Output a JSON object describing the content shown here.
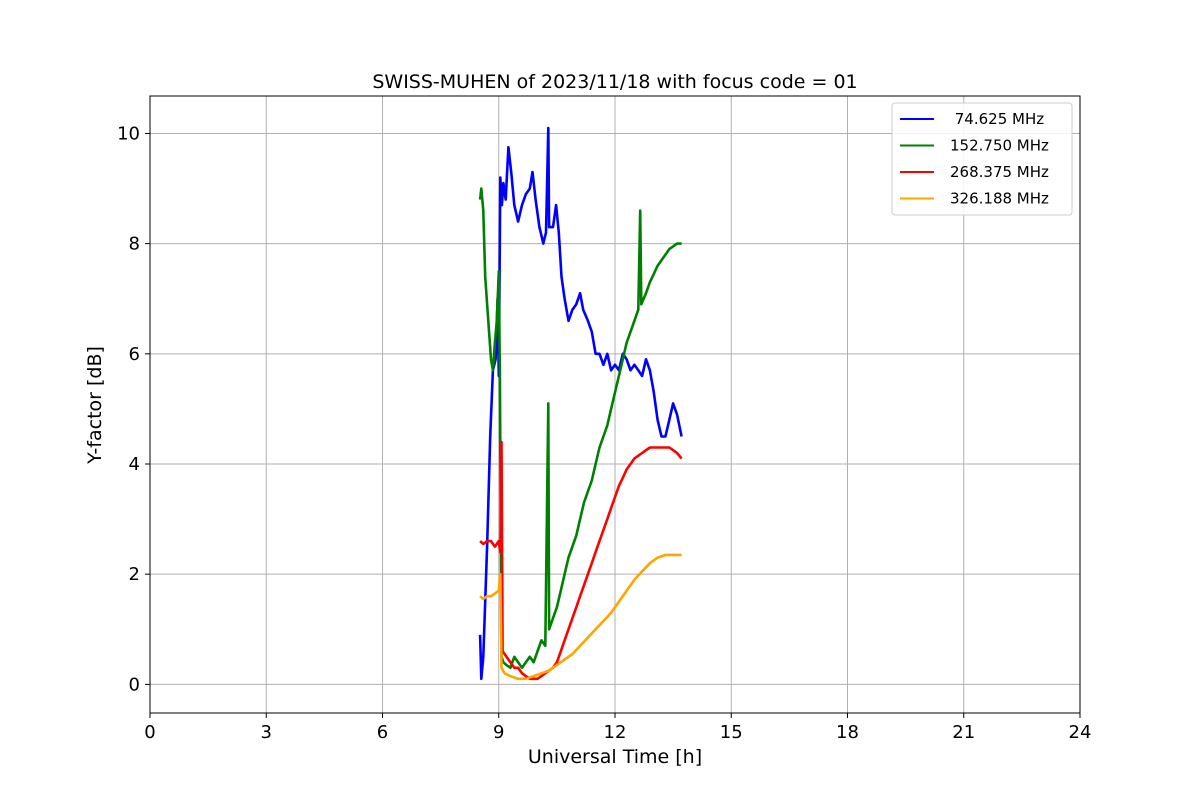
{
  "chart_data": {
    "type": "line",
    "title": "SWISS-MUHEN of 2023/11/18 with focus code = 01",
    "xlabel": "Universal Time [h]",
    "ylabel": "Y-factor [dB]",
    "xlim": [
      0,
      24
    ],
    "ylim": [
      -0.52,
      10.68
    ],
    "xticks": [
      0,
      3,
      6,
      9,
      12,
      15,
      18,
      21,
      24
    ],
    "yticks": [
      0,
      2,
      4,
      6,
      8,
      10
    ],
    "grid": true,
    "legend_position": "top-right",
    "series": [
      {
        "name": " 74.625 MHz",
        "color": "#0000ff",
        "points": [
          [
            8.52,
            0.9
          ],
          [
            8.55,
            0.1
          ],
          [
            8.6,
            0.5
          ],
          [
            8.7,
            2.5
          ],
          [
            8.78,
            4.5
          ],
          [
            8.85,
            5.7
          ],
          [
            8.92,
            5.9
          ],
          [
            8.97,
            7.0
          ],
          [
            9.0,
            5.6
          ],
          [
            9.04,
            9.2
          ],
          [
            9.08,
            8.7
          ],
          [
            9.12,
            9.1
          ],
          [
            9.18,
            8.8
          ],
          [
            9.25,
            9.75
          ],
          [
            9.32,
            9.3
          ],
          [
            9.4,
            8.7
          ],
          [
            9.5,
            8.4
          ],
          [
            9.6,
            8.7
          ],
          [
            9.7,
            8.9
          ],
          [
            9.8,
            9.0
          ],
          [
            9.87,
            9.3
          ],
          [
            9.95,
            8.8
          ],
          [
            10.05,
            8.3
          ],
          [
            10.15,
            8.0
          ],
          [
            10.22,
            8.2
          ],
          [
            10.28,
            10.1
          ],
          [
            10.3,
            8.3
          ],
          [
            10.4,
            8.3
          ],
          [
            10.48,
            8.7
          ],
          [
            10.55,
            8.2
          ],
          [
            10.62,
            7.4
          ],
          [
            10.7,
            7.0
          ],
          [
            10.8,
            6.6
          ],
          [
            10.9,
            6.8
          ],
          [
            11.0,
            6.9
          ],
          [
            11.1,
            7.1
          ],
          [
            11.18,
            6.8
          ],
          [
            11.3,
            6.6
          ],
          [
            11.4,
            6.4
          ],
          [
            11.5,
            6.0
          ],
          [
            11.6,
            6.0
          ],
          [
            11.7,
            5.8
          ],
          [
            11.8,
            6.0
          ],
          [
            11.9,
            5.7
          ],
          [
            12.0,
            5.8
          ],
          [
            12.1,
            5.7
          ],
          [
            12.2,
            6.0
          ],
          [
            12.3,
            5.9
          ],
          [
            12.4,
            5.7
          ],
          [
            12.5,
            5.8
          ],
          [
            12.6,
            5.7
          ],
          [
            12.7,
            5.6
          ],
          [
            12.8,
            5.9
          ],
          [
            12.9,
            5.7
          ],
          [
            13.0,
            5.3
          ],
          [
            13.1,
            4.8
          ],
          [
            13.2,
            4.5
          ],
          [
            13.3,
            4.5
          ],
          [
            13.4,
            4.8
          ],
          [
            13.5,
            5.1
          ],
          [
            13.6,
            4.9
          ],
          [
            13.72,
            4.5
          ]
        ]
      },
      {
        "name": "152.750 MHz",
        "color": "#008000",
        "points": [
          [
            8.52,
            8.8
          ],
          [
            8.55,
            9.0
          ],
          [
            8.6,
            8.6
          ],
          [
            8.65,
            7.4
          ],
          [
            8.72,
            6.7
          ],
          [
            8.8,
            5.9
          ],
          [
            8.85,
            5.7
          ],
          [
            8.9,
            6.2
          ],
          [
            8.95,
            6.6
          ],
          [
            9.0,
            7.5
          ],
          [
            9.03,
            5.6
          ],
          [
            9.07,
            0.5
          ],
          [
            9.12,
            0.4
          ],
          [
            9.2,
            0.35
          ],
          [
            9.3,
            0.3
          ],
          [
            9.4,
            0.5
          ],
          [
            9.5,
            0.4
          ],
          [
            9.6,
            0.3
          ],
          [
            9.7,
            0.4
          ],
          [
            9.8,
            0.5
          ],
          [
            9.9,
            0.4
          ],
          [
            10.0,
            0.6
          ],
          [
            10.1,
            0.8
          ],
          [
            10.2,
            0.7
          ],
          [
            10.28,
            5.1
          ],
          [
            10.3,
            1.0
          ],
          [
            10.4,
            1.2
          ],
          [
            10.5,
            1.4
          ],
          [
            10.6,
            1.7
          ],
          [
            10.7,
            2.0
          ],
          [
            10.8,
            2.3
          ],
          [
            10.9,
            2.5
          ],
          [
            11.0,
            2.7
          ],
          [
            11.1,
            3.0
          ],
          [
            11.2,
            3.3
          ],
          [
            11.3,
            3.5
          ],
          [
            11.4,
            3.7
          ],
          [
            11.5,
            4.0
          ],
          [
            11.6,
            4.3
          ],
          [
            11.7,
            4.5
          ],
          [
            11.8,
            4.7
          ],
          [
            11.9,
            5.0
          ],
          [
            12.0,
            5.3
          ],
          [
            12.1,
            5.6
          ],
          [
            12.2,
            5.9
          ],
          [
            12.3,
            6.2
          ],
          [
            12.4,
            6.4
          ],
          [
            12.5,
            6.6
          ],
          [
            12.6,
            6.8
          ],
          [
            12.65,
            8.6
          ],
          [
            12.68,
            6.9
          ],
          [
            12.8,
            7.1
          ],
          [
            12.9,
            7.3
          ],
          [
            13.0,
            7.45
          ],
          [
            13.1,
            7.6
          ],
          [
            13.2,
            7.7
          ],
          [
            13.3,
            7.8
          ],
          [
            13.4,
            7.9
          ],
          [
            13.5,
            7.95
          ],
          [
            13.6,
            8.0
          ],
          [
            13.72,
            8.0
          ]
        ]
      },
      {
        "name": "268.375 MHz",
        "color": "#ff0000",
        "points": [
          [
            8.52,
            2.6
          ],
          [
            8.6,
            2.55
          ],
          [
            8.7,
            2.6
          ],
          [
            8.8,
            2.6
          ],
          [
            8.9,
            2.5
          ],
          [
            9.0,
            2.6
          ],
          [
            9.04,
            2.4
          ],
          [
            9.07,
            4.4
          ],
          [
            9.1,
            0.6
          ],
          [
            9.2,
            0.5
          ],
          [
            9.3,
            0.4
          ],
          [
            9.4,
            0.3
          ],
          [
            9.5,
            0.3
          ],
          [
            9.6,
            0.2
          ],
          [
            9.7,
            0.15
          ],
          [
            9.8,
            0.1
          ],
          [
            9.9,
            0.1
          ],
          [
            10.0,
            0.1
          ],
          [
            10.1,
            0.15
          ],
          [
            10.2,
            0.2
          ],
          [
            10.3,
            0.25
          ],
          [
            10.4,
            0.3
          ],
          [
            10.5,
            0.4
          ],
          [
            10.6,
            0.6
          ],
          [
            10.7,
            0.8
          ],
          [
            10.8,
            1.0
          ],
          [
            10.9,
            1.2
          ],
          [
            11.0,
            1.4
          ],
          [
            11.1,
            1.6
          ],
          [
            11.2,
            1.8
          ],
          [
            11.3,
            2.0
          ],
          [
            11.4,
            2.2
          ],
          [
            11.5,
            2.4
          ],
          [
            11.6,
            2.6
          ],
          [
            11.7,
            2.8
          ],
          [
            11.8,
            3.0
          ],
          [
            11.9,
            3.2
          ],
          [
            12.0,
            3.4
          ],
          [
            12.1,
            3.6
          ],
          [
            12.2,
            3.75
          ],
          [
            12.3,
            3.9
          ],
          [
            12.4,
            4.0
          ],
          [
            12.5,
            4.1
          ],
          [
            12.6,
            4.15
          ],
          [
            12.7,
            4.2
          ],
          [
            12.8,
            4.25
          ],
          [
            12.9,
            4.3
          ],
          [
            13.0,
            4.3
          ],
          [
            13.1,
            4.3
          ],
          [
            13.2,
            4.3
          ],
          [
            13.3,
            4.3
          ],
          [
            13.4,
            4.3
          ],
          [
            13.5,
            4.25
          ],
          [
            13.6,
            4.2
          ],
          [
            13.72,
            4.1
          ]
        ]
      },
      {
        "name": "326.188 MHz",
        "color": "#ffa500",
        "points": [
          [
            8.52,
            1.6
          ],
          [
            8.6,
            1.55
          ],
          [
            8.7,
            1.6
          ],
          [
            8.8,
            1.6
          ],
          [
            8.9,
            1.65
          ],
          [
            9.0,
            1.7
          ],
          [
            9.04,
            2.0
          ],
          [
            9.07,
            0.3
          ],
          [
            9.15,
            0.2
          ],
          [
            9.3,
            0.15
          ],
          [
            9.5,
            0.1
          ],
          [
            9.7,
            0.1
          ],
          [
            9.9,
            0.15
          ],
          [
            10.1,
            0.2
          ],
          [
            10.3,
            0.25
          ],
          [
            10.5,
            0.35
          ],
          [
            10.7,
            0.45
          ],
          [
            10.9,
            0.55
          ],
          [
            11.1,
            0.7
          ],
          [
            11.3,
            0.85
          ],
          [
            11.5,
            1.0
          ],
          [
            11.7,
            1.15
          ],
          [
            11.9,
            1.3
          ],
          [
            12.1,
            1.5
          ],
          [
            12.3,
            1.7
          ],
          [
            12.5,
            1.9
          ],
          [
            12.7,
            2.05
          ],
          [
            12.9,
            2.2
          ],
          [
            13.1,
            2.3
          ],
          [
            13.3,
            2.35
          ],
          [
            13.5,
            2.35
          ],
          [
            13.72,
            2.35
          ]
        ]
      }
    ]
  }
}
